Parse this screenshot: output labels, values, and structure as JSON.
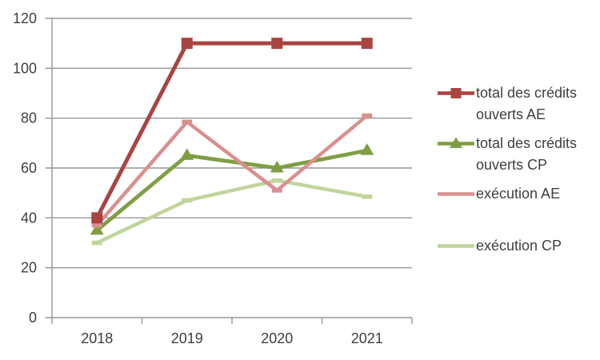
{
  "chart_data": {
    "type": "line",
    "title": "",
    "xlabel": "",
    "ylabel": "",
    "categories": [
      "2018",
      "2019",
      "2020",
      "2021"
    ],
    "series": [
      {
        "name": "total des crédits ouverts AE",
        "values": [
          40,
          110,
          110,
          110
        ],
        "color": "#A94441",
        "marker": "square"
      },
      {
        "name": "total des crédits ouverts CP",
        "values": [
          35,
          65,
          60,
          67
        ],
        "color": "#7E9E44",
        "marker": "triangle"
      },
      {
        "name": "exécution AE",
        "values": [
          37,
          78.5,
          51,
          81
        ],
        "color": "#D8908E",
        "marker": "dash"
      },
      {
        "name": "exécution CP",
        "values": [
          30,
          47,
          55,
          48.5
        ],
        "color": "#C0D59A",
        "marker": "dash"
      }
    ],
    "ylim": [
      0,
      120
    ],
    "ytick_step": 20,
    "yticks": [
      0,
      20,
      40,
      60,
      80,
      100,
      120
    ],
    "grid": "horizontal",
    "legend_position": "right",
    "axis_color": "#969696",
    "text_color": "#3f3f3f",
    "background_color": "#ffffff"
  }
}
